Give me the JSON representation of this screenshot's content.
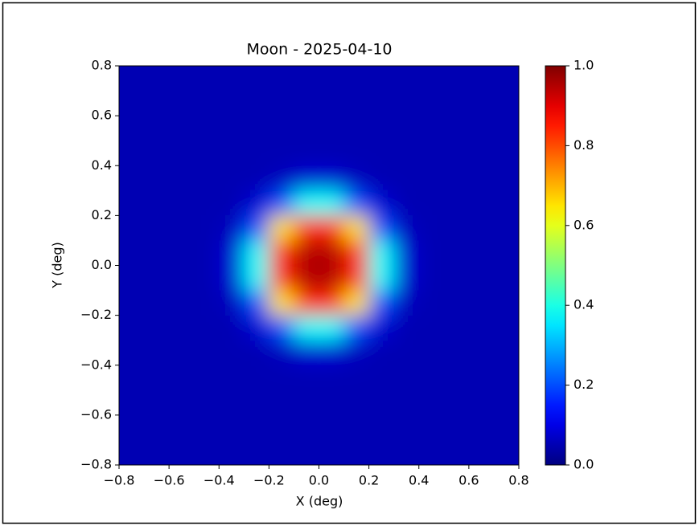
{
  "chart_data": {
    "type": "heatmap",
    "title": "Moon - 2025-04-10",
    "x_label": "X (deg)",
    "y_label": "Y (deg)",
    "colormap": "jet",
    "xlim": [
      -0.8,
      0.8
    ],
    "ylim": [
      -0.8,
      0.8
    ],
    "xticks": [
      {
        "value": -0.8,
        "label": "−0.8"
      },
      {
        "value": -0.6,
        "label": "−0.6"
      },
      {
        "value": -0.4,
        "label": "−0.4"
      },
      {
        "value": -0.2,
        "label": "−0.2"
      },
      {
        "value": 0,
        "label": "0.0"
      },
      0.2,
      0.4,
      0.6,
      0.8
    ],
    "yticks": [
      {
        "value": -0.8,
        "label": "−0.8"
      },
      {
        "value": -0.6,
        "label": "−0.6"
      },
      {
        "value": -0.4,
        "label": "−0.4"
      },
      {
        "value": -0.2,
        "label": "−0.2"
      },
      {
        "value": 0,
        "label": "0.0"
      },
      0.2,
      0.4,
      0.6,
      0.8
    ],
    "clim": [
      0,
      1
    ],
    "cticks": [
      {
        "value": 0,
        "label": "0.0"
      },
      0.2,
      0.4,
      0.6,
      0.8,
      {
        "value": 1,
        "label": "1.0"
      }
    ],
    "z": [
      [
        0.05,
        0.05,
        0.05,
        0.05,
        0.05,
        0.05,
        0.05,
        0.05,
        0.05,
        0.05,
        0.05,
        0.05,
        0.05,
        0.05,
        0.05,
        0.05
      ],
      [
        0.05,
        0.05,
        0.05,
        0.05,
        0.05,
        0.05,
        0.05,
        0.05,
        0.05,
        0.05,
        0.05,
        0.05,
        0.05,
        0.05,
        0.05,
        0.05
      ],
      [
        0.05,
        0.05,
        0.05,
        0.05,
        0.05,
        0.05,
        0.05,
        0.05,
        0.05,
        0.05,
        0.05,
        0.05,
        0.05,
        0.05,
        0.05,
        0.05
      ],
      [
        0.05,
        0.05,
        0.05,
        0.05,
        0.05,
        0.05,
        0.05,
        0.05,
        0.05,
        0.05,
        0.05,
        0.05,
        0.05,
        0.05,
        0.05,
        0.05
      ],
      [
        0.05,
        0.05,
        0.05,
        0.05,
        0.05,
        0.05,
        0.06,
        0.08,
        0.08,
        0.06,
        0.05,
        0.05,
        0.05,
        0.05,
        0.05,
        0.05
      ],
      [
        0.05,
        0.05,
        0.05,
        0.05,
        0.05,
        0.08,
        0.2,
        0.38,
        0.38,
        0.2,
        0.08,
        0.05,
        0.05,
        0.05,
        0.05,
        0.05
      ],
      [
        0.05,
        0.05,
        0.05,
        0.05,
        0.06,
        0.2,
        0.65,
        0.83,
        0.83,
        0.65,
        0.2,
        0.06,
        0.05,
        0.05,
        0.05,
        0.05
      ],
      [
        0.05,
        0.05,
        0.05,
        0.05,
        0.08,
        0.38,
        0.83,
        0.95,
        0.95,
        0.83,
        0.38,
        0.08,
        0.05,
        0.05,
        0.05,
        0.05
      ],
      [
        0.05,
        0.05,
        0.05,
        0.05,
        0.08,
        0.38,
        0.83,
        0.95,
        0.95,
        0.83,
        0.38,
        0.08,
        0.05,
        0.05,
        0.05,
        0.05
      ],
      [
        0.05,
        0.05,
        0.05,
        0.05,
        0.06,
        0.2,
        0.65,
        0.83,
        0.83,
        0.65,
        0.2,
        0.06,
        0.05,
        0.05,
        0.05,
        0.05
      ],
      [
        0.05,
        0.05,
        0.05,
        0.05,
        0.05,
        0.08,
        0.2,
        0.38,
        0.38,
        0.2,
        0.08,
        0.05,
        0.05,
        0.05,
        0.05,
        0.05
      ],
      [
        0.05,
        0.05,
        0.05,
        0.05,
        0.05,
        0.05,
        0.06,
        0.08,
        0.08,
        0.06,
        0.05,
        0.05,
        0.05,
        0.05,
        0.05,
        0.05
      ],
      [
        0.05,
        0.05,
        0.05,
        0.05,
        0.05,
        0.05,
        0.05,
        0.05,
        0.05,
        0.05,
        0.05,
        0.05,
        0.05,
        0.05,
        0.05,
        0.05
      ],
      [
        0.05,
        0.05,
        0.05,
        0.05,
        0.05,
        0.05,
        0.05,
        0.05,
        0.05,
        0.05,
        0.05,
        0.05,
        0.05,
        0.05,
        0.05,
        0.05
      ],
      [
        0.05,
        0.05,
        0.05,
        0.05,
        0.05,
        0.05,
        0.05,
        0.05,
        0.05,
        0.05,
        0.05,
        0.05,
        0.05,
        0.05,
        0.05,
        0.05
      ],
      [
        0.05,
        0.05,
        0.05,
        0.05,
        0.05,
        0.05,
        0.05,
        0.05,
        0.05,
        0.05,
        0.05,
        0.05,
        0.05,
        0.05,
        0.05,
        0.05
      ]
    ]
  }
}
